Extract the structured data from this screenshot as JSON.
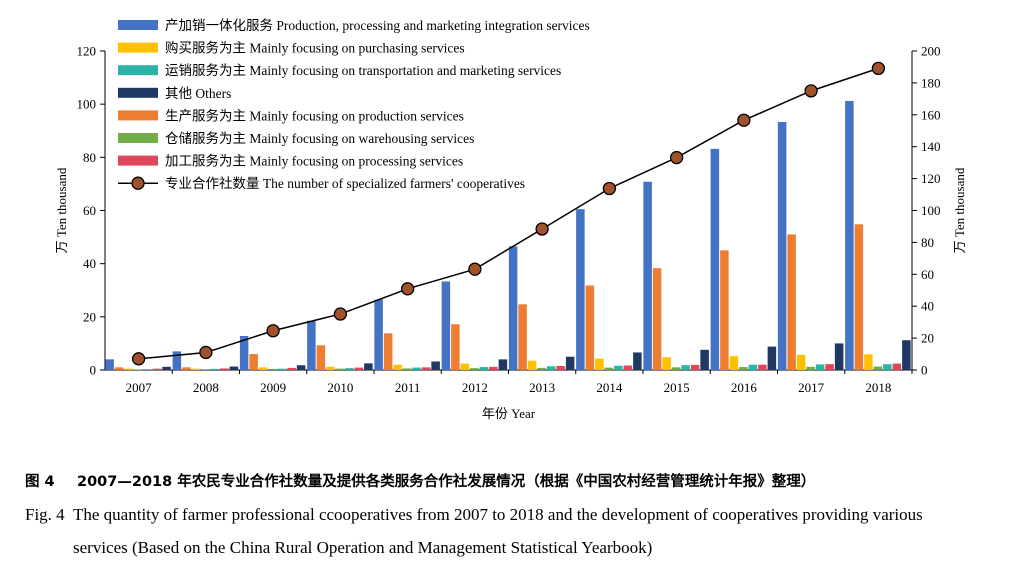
{
  "chart_data": {
    "type": "bar",
    "categories": [
      "2007",
      "2008",
      "2009",
      "2010",
      "2011",
      "2012",
      "2013",
      "2014",
      "2015",
      "2016",
      "2017",
      "2018"
    ],
    "xlabel": "年份 Year",
    "ylabel_left": "万 Ten thousand",
    "ylabel_right": "万 Ten thousand",
    "ylim_left": [
      0,
      120
    ],
    "ylim_right": [
      0,
      200
    ],
    "yticks_left": [
      "0",
      "20",
      "40",
      "60",
      "80",
      "100",
      "120"
    ],
    "yticks_right": [
      "0",
      "20",
      "40",
      "60",
      "80",
      "100",
      "120",
      "140",
      "160",
      "180",
      "200"
    ],
    "series": [
      {
        "name": "产加销一体化服务 Production, processing and marketing integration services",
        "color": "#4472c4",
        "axis": "left",
        "values": [
          4.0,
          7.0,
          12.8,
          18.5,
          26.5,
          33.3,
          46.5,
          60.5,
          70.8,
          83.2,
          93.3,
          101.2
        ]
      },
      {
        "name": "生产服务为主 Mainly focusing on production services",
        "color": "#ed7d31",
        "axis": "left",
        "values": [
          1.0,
          1.0,
          6.0,
          9.3,
          13.8,
          17.2,
          24.7,
          31.8,
          38.3,
          45.0,
          51.0,
          54.8
        ]
      },
      {
        "name": "购买服务为主 Mainly focusing on purchasing services",
        "color": "#ffc000",
        "axis": "left",
        "values": [
          0.5,
          0.5,
          1.0,
          1.2,
          2.0,
          2.4,
          3.5,
          4.3,
          4.8,
          5.2,
          5.7,
          5.9
        ]
      },
      {
        "name": "仓储服务为主 Mainly focusing on warehousing services",
        "color": "#70ad47",
        "axis": "left",
        "values": [
          0.2,
          0.3,
          0.4,
          0.5,
          0.6,
          0.7,
          0.8,
          0.9,
          1.0,
          1.1,
          1.2,
          1.3
        ]
      },
      {
        "name": "运销服务为主 Mainly focusing on transportation and marketing services",
        "color": "#2bb5a6",
        "axis": "left",
        "values": [
          0.3,
          0.4,
          0.5,
          0.7,
          0.9,
          1.1,
          1.4,
          1.6,
          1.8,
          2.0,
          2.1,
          2.2
        ]
      },
      {
        "name": "加工服务为主 Mainly focusing on processing services",
        "color": "#e0475b",
        "axis": "left",
        "values": [
          0.5,
          0.6,
          0.8,
          0.9,
          1.0,
          1.2,
          1.5,
          1.7,
          1.9,
          2.0,
          2.2,
          2.4
        ]
      },
      {
        "name": "其他 Others",
        "color": "#1f3864",
        "axis": "left",
        "values": [
          1.2,
          1.3,
          1.8,
          2.5,
          3.2,
          4.0,
          5.0,
          6.6,
          7.6,
          8.8,
          10.0,
          11.2
        ]
      }
    ],
    "line_series": {
      "name": "专业合作社数量 The number of specialized farmers' cooperatives",
      "axis": "right",
      "color": "#000000",
      "marker_color": "#a0522d",
      "values": [
        7.0,
        11.0,
        24.6,
        35.1,
        50.9,
        63.2,
        88.4,
        113.8,
        133.2,
        156.6,
        175.0,
        189.1
      ]
    },
    "legend": [
      {
        "label": "产加销一体化服务 Production, processing and marketing integration services",
        "color": "#4472c4",
        "kind": "bar"
      },
      {
        "label": "购买服务为主 Mainly focusing on purchasing services",
        "color": "#ffc000",
        "kind": "bar"
      },
      {
        "label": "运销服务为主 Mainly focusing on transportation and marketing services",
        "color": "#2bb5a6",
        "kind": "bar"
      },
      {
        "label": "其他 Others",
        "color": "#1f3864",
        "kind": "bar"
      },
      {
        "label": "生产服务为主 Mainly focusing on production services",
        "color": "#ed7d31",
        "kind": "bar"
      },
      {
        "label": "仓储服务为主 Mainly focusing on warehousing services",
        "color": "#70ad47",
        "kind": "bar"
      },
      {
        "label": "加工服务为主 Mainly focusing on processing services",
        "color": "#e0475b",
        "kind": "bar"
      },
      {
        "label": "专业合作社数量 The number of specialized farmers' cooperatives",
        "color": "#a0522d",
        "kind": "line"
      }
    ],
    "legend_position": "top-left"
  },
  "caption": {
    "cn_label": "图 4",
    "cn_text": "2007—2018 年农民专业合作社数量及提供各类服务合作社发展情况（根据《中国农村经营管理统计年报》整理）",
    "en_label": "Fig. 4",
    "en_text_line1": "The quantity of farmer professional ccooperatives from 2007 to 2018 and the development of cooperatives providing various",
    "en_text_line2": "services (Based on the China Rural Operation and Management Statistical Yearbook)"
  }
}
